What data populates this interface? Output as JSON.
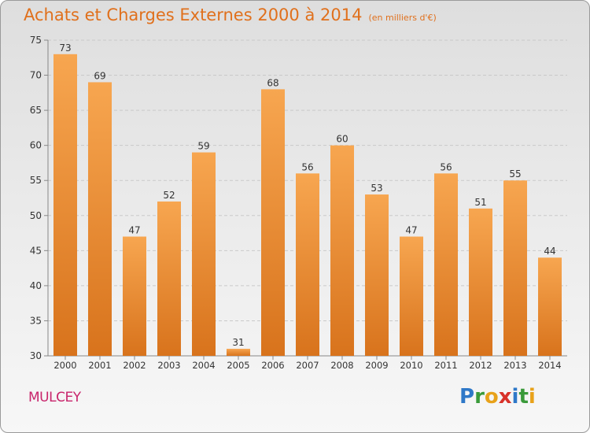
{
  "title": "Achats et Charges Externes 2000 à 2014",
  "subtitle": "(en milliers d'€)",
  "commune": "MULCEY",
  "logo": {
    "letters": [
      "P",
      "r",
      "o",
      "x",
      "i",
      "t",
      "i"
    ],
    "colors": [
      "#2e78c8",
      "#3a9a3a",
      "#e8a21a",
      "#d8322a",
      "#2e78c8",
      "#3a9a3a",
      "#e8a21a"
    ]
  },
  "colors": {
    "bar_top": "#f7a650",
    "bar_bottom": "#d8731c",
    "title": "#e0701c"
  },
  "chart_data": {
    "type": "bar",
    "categories": [
      "2000",
      "2001",
      "2002",
      "2003",
      "2004",
      "2005",
      "2006",
      "2007",
      "2008",
      "2009",
      "2010",
      "2011",
      "2012",
      "2013",
      "2014"
    ],
    "values": [
      73,
      69,
      47,
      52,
      59,
      31,
      68,
      56,
      60,
      53,
      47,
      56,
      51,
      55,
      44
    ],
    "data_labels": [
      "73",
      "69",
      "47",
      "52",
      "59",
      "31",
      "68",
      "56",
      "60",
      "53",
      "47",
      "56",
      "51",
      "55",
      "44"
    ],
    "ylim": [
      30,
      75
    ],
    "yticks": [
      "30",
      "35",
      "40",
      "45",
      "50",
      "55",
      "60",
      "65",
      "70",
      "75"
    ],
    "grid": true
  }
}
